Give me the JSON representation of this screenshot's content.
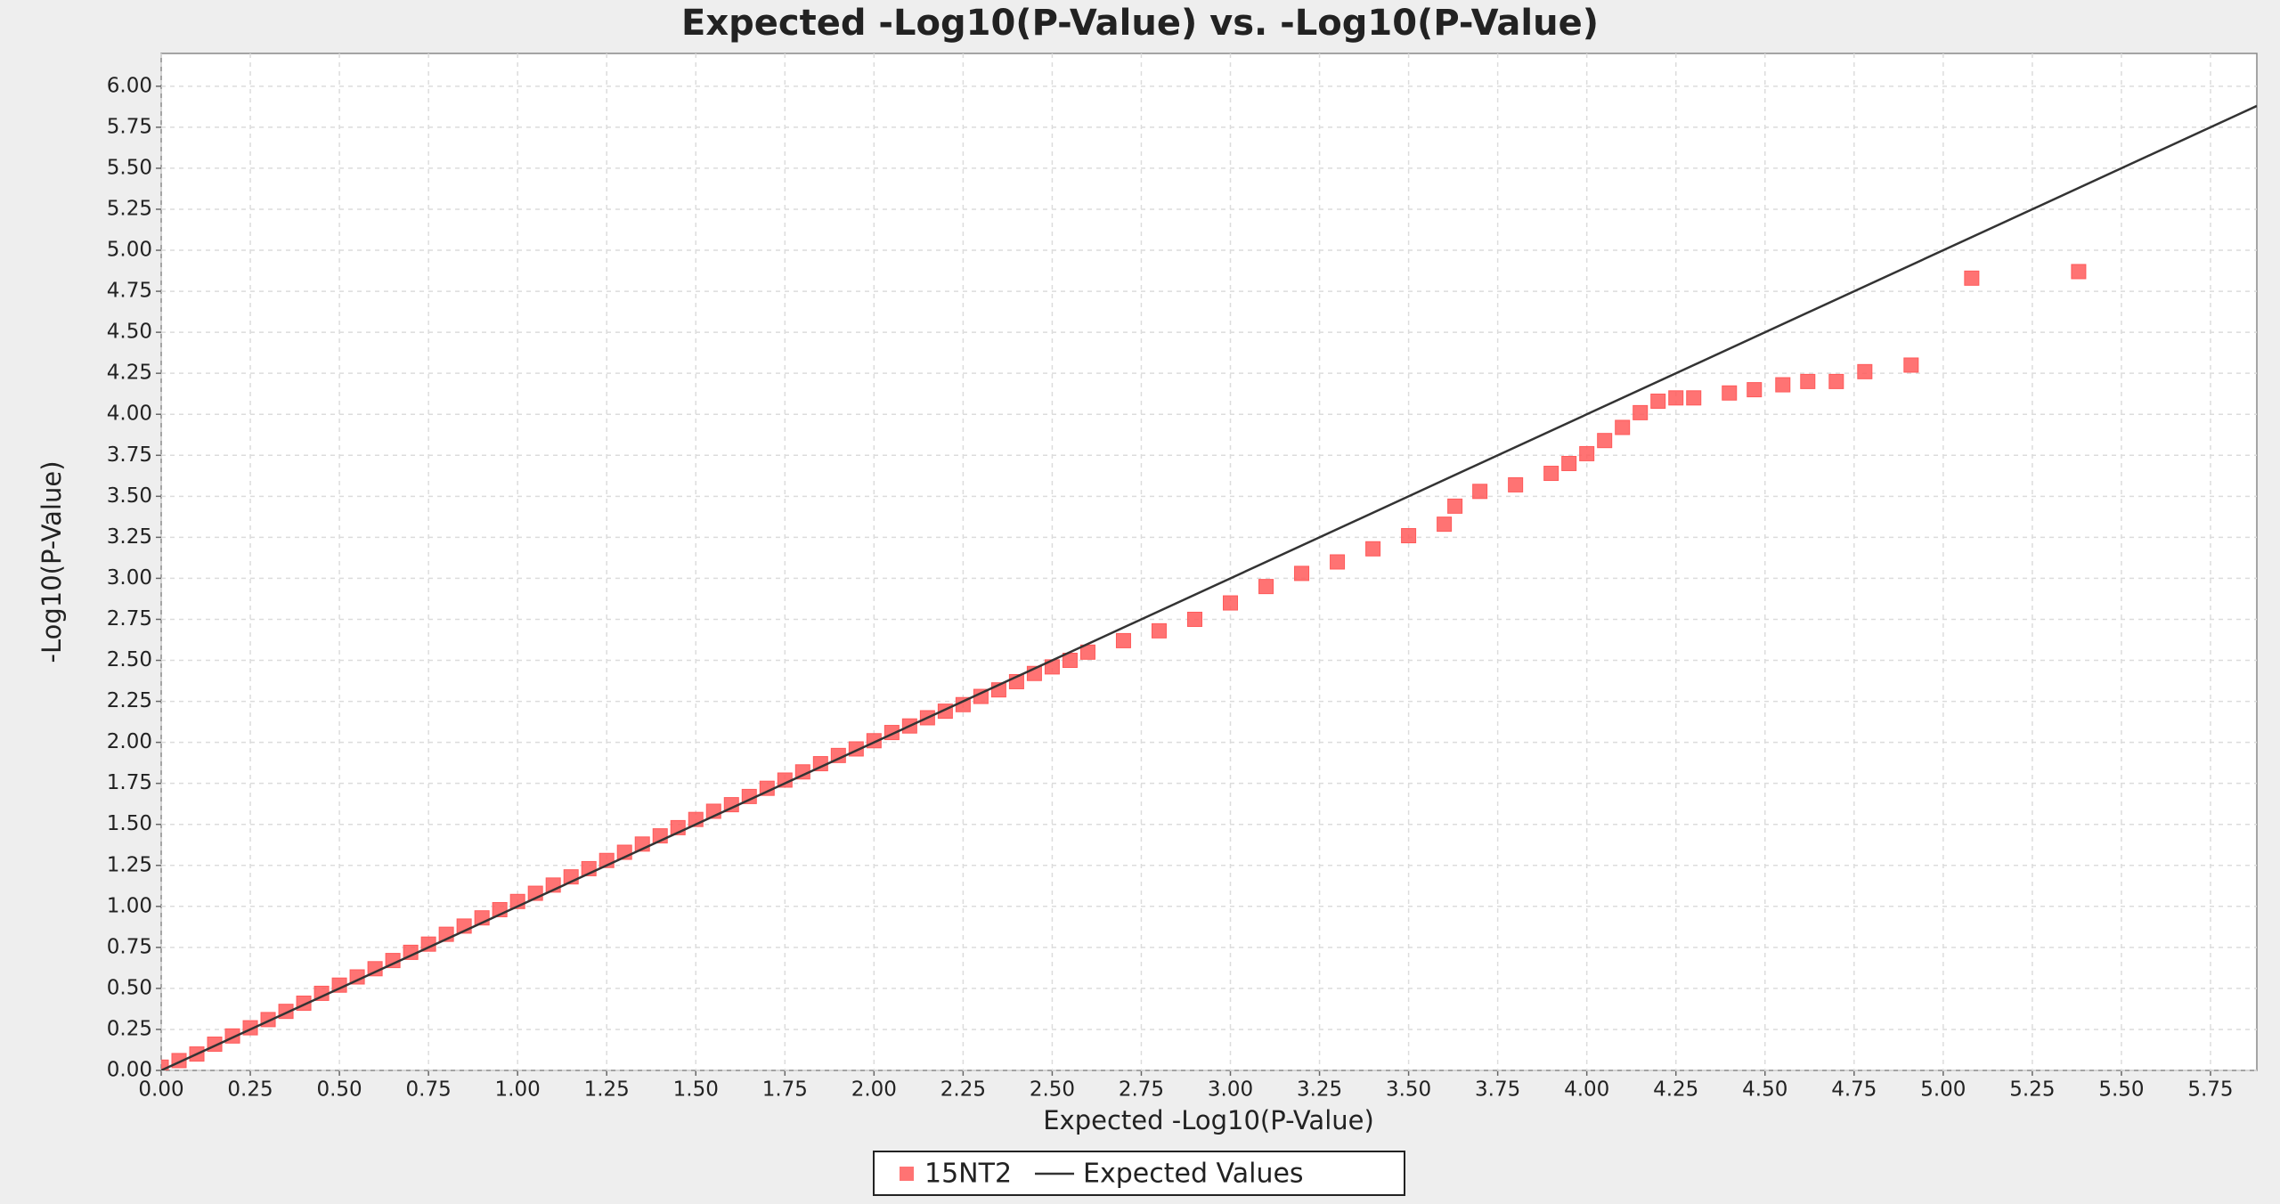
{
  "chart_data": {
    "type": "scatter",
    "title": "Expected -Log10(P-Value) vs. -Log10(P-Value)",
    "x_label": "Expected -Log10(P-Value)",
    "y_label": "-Log10(P-Value)",
    "xlim": [
      0,
      5.88
    ],
    "ylim": [
      0,
      6.2
    ],
    "grid": true,
    "legend": "bottom",
    "xticks": [
      {
        "value": 0,
        "label": "0.00"
      },
      {
        "value": 0.25,
        "label": "0.25"
      },
      {
        "value": 0.5,
        "label": "0.50"
      },
      {
        "value": 0.75,
        "label": "0.75"
      },
      {
        "value": 1,
        "label": "1.00"
      },
      {
        "value": 1.25,
        "label": "1.25"
      },
      {
        "value": 1.5,
        "label": "1.50"
      },
      {
        "value": 1.75,
        "label": "1.75"
      },
      {
        "value": 2,
        "label": "2.00"
      },
      {
        "value": 2.25,
        "label": "2.25"
      },
      {
        "value": 2.5,
        "label": "2.50"
      },
      {
        "value": 2.75,
        "label": "2.75"
      },
      {
        "value": 3,
        "label": "3.00"
      },
      {
        "value": 3.25,
        "label": "3.25"
      },
      {
        "value": 3.5,
        "label": "3.50"
      },
      {
        "value": 3.75,
        "label": "3.75"
      },
      {
        "value": 4,
        "label": "4.00"
      },
      {
        "value": 4.25,
        "label": "4.25"
      },
      {
        "value": 4.5,
        "label": "4.50"
      },
      {
        "value": 4.75,
        "label": "4.75"
      },
      {
        "value": 5,
        "label": "5.00"
      },
      {
        "value": 5.25,
        "label": "5.25"
      },
      {
        "value": 5.5,
        "label": "5.50"
      },
      {
        "value": 5.75,
        "label": "5.75"
      }
    ],
    "yticks": [
      {
        "value": 0,
        "label": "0.00"
      },
      {
        "value": 0.25,
        "label": "0.25"
      },
      {
        "value": 0.5,
        "label": "0.50"
      },
      {
        "value": 0.75,
        "label": "0.75"
      },
      {
        "value": 1,
        "label": "1.00"
      },
      {
        "value": 1.25,
        "label": "1.25"
      },
      {
        "value": 1.5,
        "label": "1.50"
      },
      {
        "value": 1.75,
        "label": "1.75"
      },
      {
        "value": 2,
        "label": "2.00"
      },
      {
        "value": 2.25,
        "label": "2.25"
      },
      {
        "value": 2.5,
        "label": "2.50"
      },
      {
        "value": 2.75,
        "label": "2.75"
      },
      {
        "value": 3,
        "label": "3.00"
      },
      {
        "value": 3.25,
        "label": "3.25"
      },
      {
        "value": 3.5,
        "label": "3.50"
      },
      {
        "value": 3.75,
        "label": "3.75"
      },
      {
        "value": 4,
        "label": "4.00"
      },
      {
        "value": 4.25,
        "label": "4.25"
      },
      {
        "value": 4.5,
        "label": "4.50"
      },
      {
        "value": 4.75,
        "label": "4.75"
      },
      {
        "value": 5,
        "label": "5.00"
      },
      {
        "value": 5.25,
        "label": "5.25"
      },
      {
        "value": 5.5,
        "label": "5.50"
      },
      {
        "value": 5.75,
        "label": "5.75"
      },
      {
        "value": 6,
        "label": "6.00"
      }
    ],
    "series": [
      {
        "name": "15NT2",
        "color": "#ff5a5a",
        "mode": "markers",
        "x": [
          0,
          0.05,
          0.1,
          0.15,
          0.2,
          0.25,
          0.3,
          0.35,
          0.4,
          0.45,
          0.5,
          0.55,
          0.6,
          0.65,
          0.7,
          0.75,
          0.8,
          0.85,
          0.9,
          0.95,
          1.0,
          1.05,
          1.1,
          1.15,
          1.2,
          1.25,
          1.3,
          1.35,
          1.4,
          1.45,
          1.5,
          1.55,
          1.6,
          1.65,
          1.7,
          1.75,
          1.8,
          1.85,
          1.9,
          1.95,
          2.0,
          2.05,
          2.1,
          2.15,
          2.2,
          2.25,
          2.3,
          2.35,
          2.4,
          2.45,
          2.5,
          2.55,
          2.6,
          2.7,
          2.8,
          2.9,
          3.0,
          3.1,
          3.2,
          3.3,
          3.4,
          3.5,
          3.6,
          3.63,
          3.7,
          3.8,
          3.9,
          3.95,
          4.0,
          4.05,
          4.1,
          4.15,
          4.2,
          4.25,
          4.3,
          4.4,
          4.47,
          4.55,
          4.62,
          4.7,
          4.78,
          4.91,
          5.08,
          5.38
        ],
        "values": [
          0.02,
          0.06,
          0.1,
          0.16,
          0.21,
          0.26,
          0.31,
          0.36,
          0.41,
          0.47,
          0.52,
          0.57,
          0.62,
          0.67,
          0.72,
          0.77,
          0.83,
          0.88,
          0.93,
          0.98,
          1.03,
          1.08,
          1.13,
          1.18,
          1.23,
          1.28,
          1.33,
          1.38,
          1.43,
          1.48,
          1.53,
          1.58,
          1.62,
          1.67,
          1.72,
          1.77,
          1.82,
          1.87,
          1.92,
          1.96,
          2.01,
          2.06,
          2.1,
          2.15,
          2.19,
          2.23,
          2.28,
          2.32,
          2.37,
          2.42,
          2.46,
          2.5,
          2.55,
          2.62,
          2.68,
          2.75,
          2.85,
          2.95,
          3.03,
          3.1,
          3.18,
          3.26,
          3.33,
          3.44,
          3.53,
          3.57,
          3.64,
          3.7,
          3.76,
          3.84,
          3.92,
          4.01,
          4.08,
          4.1,
          4.1,
          4.13,
          4.15,
          4.18,
          4.2,
          4.2,
          4.26,
          4.3,
          4.83,
          4.87
        ]
      },
      {
        "name": "Expected Values",
        "color": "#333333",
        "mode": "line",
        "x": [
          0,
          5.88
        ],
        "values": [
          0,
          5.88
        ]
      }
    ]
  }
}
